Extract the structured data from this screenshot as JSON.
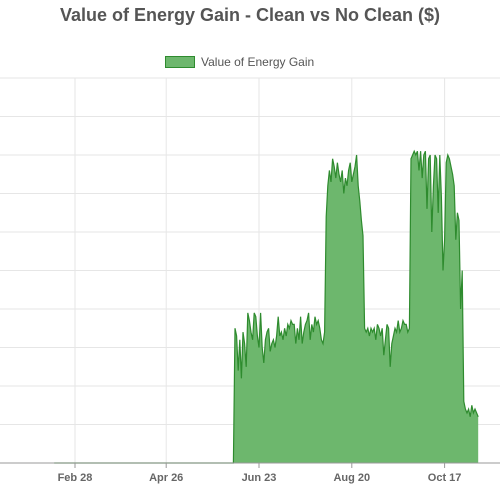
{
  "chart_data": {
    "type": "area",
    "title": "Value of Energy Gain - Clean vs No Clean ($)",
    "xlabel": "",
    "ylabel": "",
    "legend": {
      "position": "top-center",
      "items": [
        "Value of Energy Gain"
      ]
    },
    "x_tick_labels": [
      "Feb 28",
      "Apr 26",
      "Jun 23",
      "Aug 20",
      "Oct 17"
    ],
    "x_tick_index": [
      0,
      57,
      115,
      173,
      231
    ],
    "grid": true,
    "ylim": [
      0,
      10
    ],
    "colors": {
      "fill": "#6db76d",
      "line": "#2e8b2e",
      "grid": "#e6e6e6"
    },
    "series": [
      {
        "name": "Value of Energy Gain",
        "x_start": -13,
        "values": [
          0,
          0,
          0,
          0,
          0,
          0,
          0,
          0,
          0,
          0,
          0,
          0,
          0,
          0,
          0,
          0,
          0,
          0,
          0,
          0,
          0,
          0,
          0,
          0,
          0,
          0,
          0,
          0,
          0,
          0,
          0,
          0,
          0,
          0,
          0,
          0,
          0,
          0,
          0,
          0,
          0,
          0,
          0,
          0,
          0,
          0,
          0,
          0,
          0,
          0,
          0,
          0,
          0,
          0,
          0,
          0,
          0,
          0,
          0,
          0,
          0,
          0,
          0,
          0,
          0,
          0,
          0,
          0,
          0,
          0,
          0,
          0,
          0,
          0,
          0,
          0,
          0,
          0,
          0,
          0,
          0,
          0,
          0,
          0,
          0,
          0,
          0,
          0,
          0,
          0,
          0,
          0,
          0,
          0,
          0,
          0,
          0,
          0,
          0,
          0,
          0,
          0,
          0,
          0,
          0,
          0,
          0,
          0,
          0,
          0,
          0,
          0,
          0,
          3.5,
          3.3,
          2.4,
          3.2,
          2.2,
          3.4,
          3.1,
          2.5,
          3.9,
          3.7,
          3.4,
          3.2,
          3.9,
          3.8,
          3.3,
          3.0,
          3.9,
          3.0,
          2.6,
          3.2,
          3.4,
          3.5,
          2.9,
          3.1,
          3.2,
          3.0,
          3.3,
          3.8,
          3.3,
          3.4,
          3.2,
          3.5,
          3.3,
          3.6,
          3.5,
          3.7,
          3.6,
          3.6,
          3.1,
          3.5,
          3.2,
          3.8,
          3.1,
          3.4,
          3.6,
          3.7,
          3.9,
          3.2,
          3.6,
          3.4,
          3.8,
          3.6,
          3.7,
          3.5,
          3.2,
          3.1,
          3.4,
          6.4,
          7.2,
          7.6,
          7.3,
          7.9,
          7.7,
          7.4,
          7.8,
          7.5,
          7.3,
          7.6,
          7.0,
          7.4,
          7.2,
          7.6,
          7.8,
          7.3,
          7.5,
          7.7,
          8.0,
          7.2,
          6.8,
          6.3,
          5.9,
          3.5,
          3.4,
          3.5,
          3.3,
          3.5,
          3.4,
          3.5,
          3.2,
          3.6,
          3.5,
          3.3,
          3.5,
          2.8,
          3.2,
          3.6,
          3.5,
          2.5,
          3.1,
          3.3,
          3.5,
          3.4,
          3.7,
          3.4,
          3.5,
          3.7,
          3.6,
          3.6,
          3.4,
          3.5,
          7.9,
          8.0,
          8.1,
          8.0,
          8.1,
          7.6,
          8.1,
          7.4,
          8.0,
          8.1,
          6.6,
          7.9,
          8.0,
          6.0,
          7.2,
          8.0,
          7.9,
          6.5,
          8.0,
          6.9,
          5.0,
          5.8,
          7.8,
          8.0,
          7.9,
          7.7,
          7.5,
          7.2,
          5.8,
          6.5,
          6.3,
          4.0,
          5.0,
          1.6,
          1.4,
          1.3,
          1.4,
          1.2,
          1.5,
          1.3,
          1.4,
          1.3,
          1.2
        ]
      }
    ]
  }
}
